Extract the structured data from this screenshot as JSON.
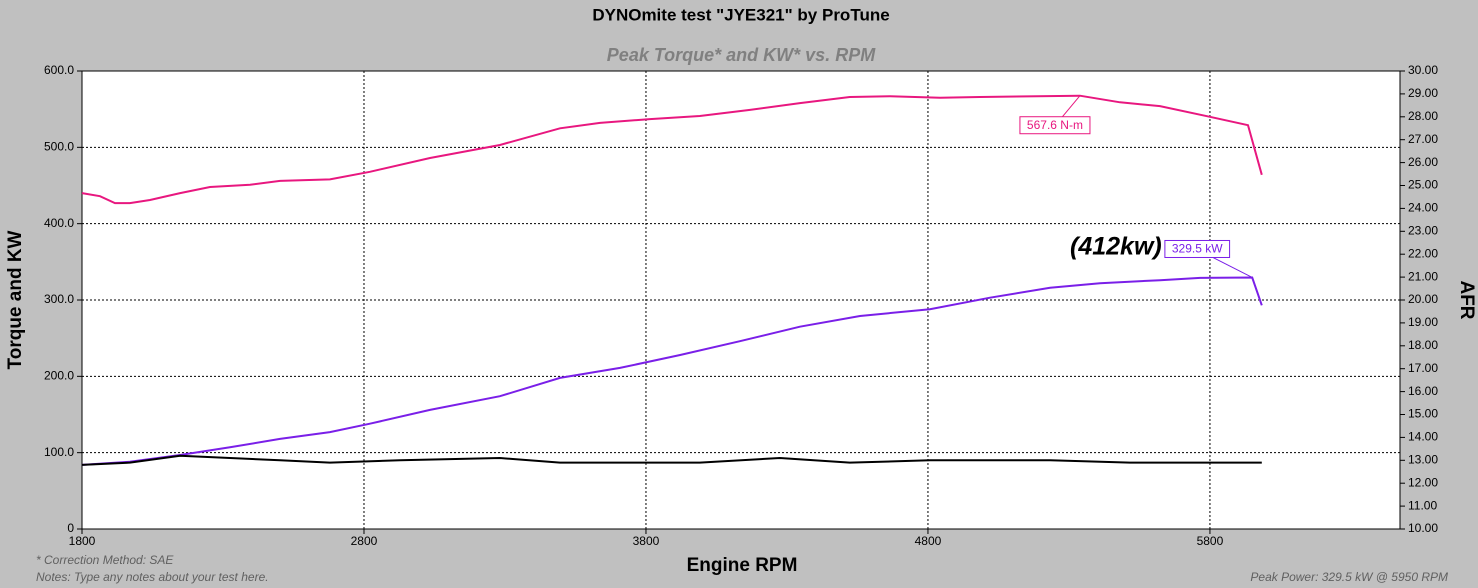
{
  "chart_data": {
    "type": "line",
    "title": "DYNOmite test \"JYE321\" by ProTune",
    "subtitle": "Peak Torque* and KW* vs. RPM",
    "x_label": "Engine RPM",
    "y_label": "Torque and KW",
    "y2_label": "AFR",
    "xlim": [
      1800,
      6474
    ],
    "xticks": [
      1800,
      2800,
      3800,
      4800,
      5800
    ],
    "ylim": [
      0,
      600
    ],
    "yticks": [
      0,
      {
        "value": 100,
        "label": "100.0"
      },
      {
        "value": 200,
        "label": "200.0"
      },
      {
        "value": 300,
        "label": "300.0"
      },
      {
        "value": 400,
        "label": "400.0"
      },
      {
        "value": 500,
        "label": "500.0"
      },
      {
        "value": 600,
        "label": "600.0"
      }
    ],
    "y2lim": [
      10,
      30
    ],
    "y2ticks": [
      {
        "value": 10,
        "label": "10.00"
      },
      {
        "value": 11,
        "label": "11.00"
      },
      {
        "value": 12,
        "label": "12.00"
      },
      {
        "value": 13,
        "label": "13.00"
      },
      {
        "value": 14,
        "label": "14.00"
      },
      {
        "value": 15,
        "label": "15.00"
      },
      {
        "value": 16,
        "label": "16.00"
      },
      {
        "value": 17,
        "label": "17.00"
      },
      {
        "value": 18,
        "label": "18.00"
      },
      {
        "value": 19,
        "label": "19.00"
      },
      {
        "value": 20,
        "label": "20.00"
      },
      {
        "value": 21,
        "label": "21.00"
      },
      {
        "value": 22,
        "label": "22.00"
      },
      {
        "value": 23,
        "label": "23.00"
      },
      {
        "value": 24,
        "label": "24.00"
      },
      {
        "value": 25,
        "label": "25.00"
      },
      {
        "value": 26,
        "label": "26.00"
      },
      {
        "value": 27,
        "label": "27.00"
      },
      {
        "value": 28,
        "label": "28.00"
      },
      {
        "value": 29,
        "label": "29.00"
      },
      {
        "value": 30,
        "label": "30.00"
      }
    ],
    "grid": true,
    "series": [
      {
        "color": "#e8177f",
        "x": [
          1800,
          1864,
          1917,
          1970,
          2041,
          2148,
          2254,
          2396,
          2502,
          2679,
          2821,
          3034,
          3282,
          3495,
          3637,
          3814,
          3991,
          4169,
          4346,
          4523,
          4665,
          4843,
          4984,
          5339,
          5481,
          5623,
          5800,
          5935,
          5984
        ],
        "values": [
          440,
          436,
          427,
          427,
          431,
          440,
          448,
          451,
          456,
          458,
          468,
          486,
          503,
          525,
          532,
          537,
          541,
          549,
          558,
          566,
          567,
          565,
          566,
          567.6,
          559,
          554,
          540,
          529,
          464
        ]
      },
      {
        "color": "#7a1fe8",
        "x": [
          1800,
          1970,
          2148,
          2325,
          2502,
          2679,
          2821,
          3034,
          3282,
          3495,
          3708,
          3921,
          4133,
          4346,
          4559,
          4807,
          5020,
          5233,
          5410,
          5623,
          5765,
          5950,
          5984
        ],
        "values": [
          84,
          88,
          97,
          107,
          118,
          127,
          138,
          156,
          174,
          198,
          211,
          228,
          246,
          265,
          279,
          288,
          303,
          316,
          322,
          326,
          329,
          329.5,
          293
        ]
      },
      {
        "color": "#000000",
        "axis": "y2",
        "x": [
          1800,
          1970,
          2148,
          2325,
          2502,
          2679,
          2928,
          3282,
          3495,
          3991,
          4275,
          4523,
          4807,
          5233,
          5516,
          5984
        ],
        "values": [
          12.8,
          12.9,
          13.2,
          13.1,
          13.0,
          12.9,
          13.0,
          13.1,
          12.9,
          12.9,
          13.1,
          12.9,
          13.0,
          13.0,
          12.9,
          12.9
        ]
      }
    ],
    "annotations": [
      {
        "text": "567.6 N-m",
        "x": 5339,
        "y": 567.6,
        "color": "#e8177f"
      },
      {
        "text": "329.5 kW",
        "x": 5950,
        "y": 329.5,
        "color": "#7a1fe8"
      }
    ],
    "callout": "(412kw)",
    "notes": [
      "* Correction Method: SAE",
      "Notes: Type any notes about your test here."
    ],
    "peak_note": "Peak Power: 329.5 kW @ 5950 RPM"
  }
}
